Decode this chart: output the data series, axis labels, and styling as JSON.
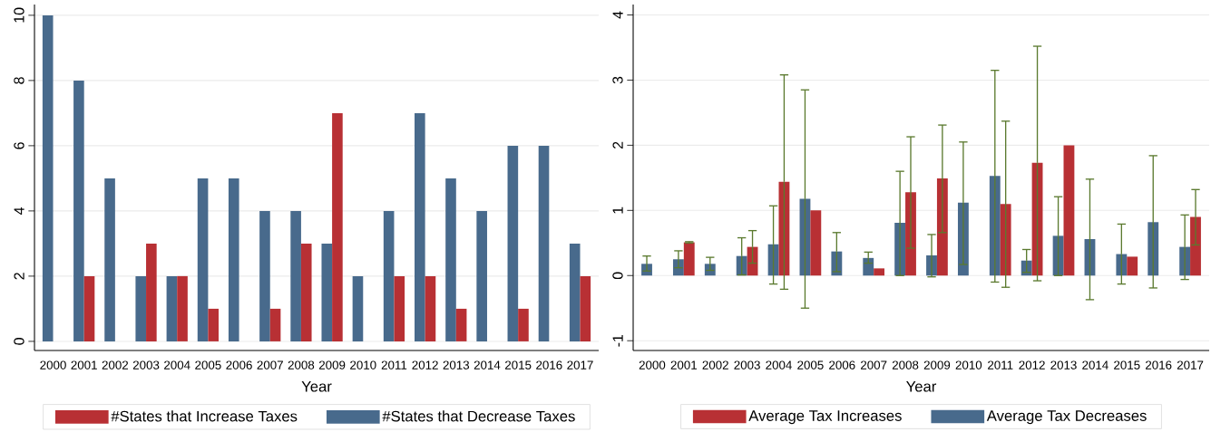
{
  "chart_data": [
    {
      "type": "bar",
      "xlabel": "Year",
      "categories": [
        "2000",
        "2001",
        "2002",
        "2003",
        "2004",
        "2005",
        "2006",
        "2007",
        "2008",
        "2009",
        "2010",
        "2011",
        "2012",
        "2013",
        "2014",
        "2015",
        "2016",
        "2017"
      ],
      "series": [
        {
          "name": "#States that Decrease Taxes",
          "color": "#486a8c",
          "values": [
            10,
            8,
            5,
            2,
            2,
            5,
            5,
            4,
            4,
            3,
            2,
            4,
            7,
            5,
            4,
            6,
            6,
            3
          ]
        },
        {
          "name": "#States that Increase Taxes",
          "color": "#b83034",
          "values": [
            0,
            2,
            0,
            3,
            2,
            1,
            0,
            1,
            3,
            7,
            0,
            2,
            2,
            1,
            0,
            1,
            0,
            2
          ]
        }
      ],
      "ylim": [
        -0.28,
        10.33
      ],
      "yticks": [
        0,
        2,
        4,
        6,
        8,
        10
      ],
      "grid": "y",
      "legend": "bottom"
    },
    {
      "type": "bar",
      "xlabel": "Year",
      "categories": [
        "2000",
        "2001",
        "2002",
        "2003",
        "2004",
        "2005",
        "2006",
        "2007",
        "2008",
        "2009",
        "2010",
        "2011",
        "2012",
        "2013",
        "2014",
        "2015",
        "2016",
        "2017"
      ],
      "series": [
        {
          "name": "Average Tax Decreases",
          "color": "#486a8c",
          "values": [
            0.18,
            0.25,
            0.18,
            0.3,
            0.48,
            1.18,
            0.37,
            0.27,
            0.81,
            0.31,
            1.12,
            1.53,
            0.23,
            0.61,
            0.56,
            0.33,
            0.82,
            0.44
          ],
          "errors": [
            [
              0.07,
              0.3
            ],
            [
              0.12,
              0.38
            ],
            [
              0.08,
              0.28
            ],
            [
              0.01,
              0.58
            ],
            [
              -0.13,
              1.07
            ],
            [
              -0.5,
              2.85
            ],
            [
              0.06,
              0.66
            ],
            [
              0.19,
              0.36
            ],
            [
              0.0,
              1.6
            ],
            [
              -0.02,
              0.63
            ],
            [
              0.17,
              2.05
            ],
            [
              -0.1,
              3.15
            ],
            [
              0.05,
              0.4
            ],
            [
              0.0,
              1.21
            ],
            [
              -0.37,
              1.48
            ],
            [
              -0.13,
              0.79
            ],
            [
              -0.19,
              1.84
            ],
            [
              -0.06,
              0.93
            ]
          ]
        },
        {
          "name": "Average Tax Increases",
          "color": "#b83034",
          "values": [
            null,
            0.51,
            null,
            0.44,
            1.44,
            1.0,
            null,
            0.11,
            1.28,
            1.49,
            null,
            1.1,
            1.73,
            2.0,
            null,
            0.29,
            null,
            0.9
          ],
          "errors": [
            null,
            [
              0.5,
              0.52
            ],
            null,
            [
              0.19,
              0.69
            ],
            [
              -0.21,
              3.08
            ],
            null,
            null,
            null,
            [
              0.42,
              2.13
            ],
            [
              0.66,
              2.31
            ],
            null,
            [
              -0.18,
              2.37
            ],
            [
              -0.08,
              3.52
            ],
            null,
            null,
            null,
            null,
            [
              0.47,
              1.32
            ]
          ]
        }
      ],
      "ylim": [
        -1.15,
        4.16
      ],
      "yticks": [
        -1,
        0,
        1,
        2,
        3,
        4
      ],
      "grid": "y",
      "legend": "bottom"
    }
  ]
}
